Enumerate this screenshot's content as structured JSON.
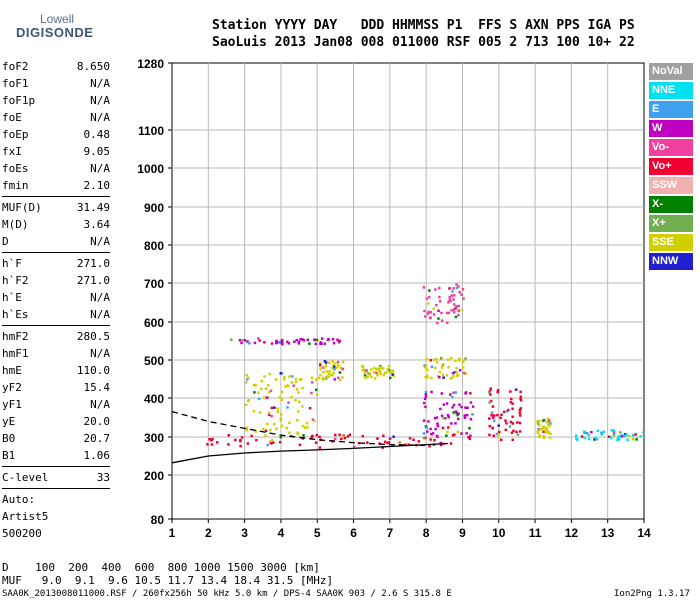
{
  "logo": {
    "line1": "Lowell",
    "line2": "DIGISONDE"
  },
  "header": {
    "row1": "Station YYYY DAY   DDD HHMMSS P1  FFS S AXN PPS IGA PS",
    "row2": "SaoLuis 2013 Jan08 008 011000 RSF 005 2 713 100 10+ 22"
  },
  "params": [
    {
      "label": "foF2",
      "value": "8.650"
    },
    {
      "label": "foF1",
      "value": "N/A"
    },
    {
      "label": "foF1p",
      "value": "N/A"
    },
    {
      "label": "foE",
      "value": "N/A"
    },
    {
      "label": "foEp",
      "value": "0.48"
    },
    {
      "label": "fxI",
      "value": "9.05"
    },
    {
      "label": "foEs",
      "value": "N/A"
    },
    {
      "label": "fmin",
      "value": "2.10"
    },
    {
      "label": "MUF(D)",
      "value": "31.49"
    },
    {
      "label": "M(D)",
      "value": "3.64"
    },
    {
      "label": "D",
      "value": "N/A"
    },
    {
      "label": "h`F",
      "value": "271.0"
    },
    {
      "label": "h`F2",
      "value": "271.0"
    },
    {
      "label": "h`E",
      "value": "N/A"
    },
    {
      "label": "h`Es",
      "value": "N/A"
    },
    {
      "label": "hmF2",
      "value": "280.5"
    },
    {
      "label": "hmF1",
      "value": "N/A"
    },
    {
      "label": "hmE",
      "value": "110.0"
    },
    {
      "label": "yF2",
      "value": "15.4"
    },
    {
      "label": "yF1",
      "value": "N/A"
    },
    {
      "label": "yE",
      "value": "20.0"
    },
    {
      "label": "B0",
      "value": "20.7"
    },
    {
      "label": "B1",
      "value": "1.06"
    }
  ],
  "clevel": {
    "label": "C-level",
    "value": "33"
  },
  "auto": {
    "line1": "Auto:",
    "line2": "Artist5",
    "line3": "500200"
  },
  "footer": {
    "d_row": "D    100  200  400  600  800 1000 1500 3000 [km]",
    "muf_row": "MUF   9.0  9.1  9.6 10.5 11.7 13.4 18.4 31.5 [MHz]",
    "file_line": "SAA0K_2013008011000.RSF / 260fx256h 50 kHz 5.0 km / DPS-4 SAA0K 903 / 2.6 S 315.8 E",
    "version": "Ion2Png 1.3.17"
  },
  "legend": [
    {
      "label": "NoVal",
      "color": "#a0a0a0"
    },
    {
      "label": "NNE",
      "color": "#00e0f0"
    },
    {
      "label": "E",
      "color": "#40a0f0"
    },
    {
      "label": "W",
      "color": "#c000c0"
    },
    {
      "label": "Vo-",
      "color": "#f040a0"
    },
    {
      "label": "Vo+",
      "color": "#f00030"
    },
    {
      "label": "SSW",
      "color": "#f0b0b0"
    },
    {
      "label": "X-",
      "color": "#008000"
    },
    {
      "label": "X+",
      "color": "#70b050"
    },
    {
      "label": "SSE",
      "color": "#d0d000"
    },
    {
      "label": "NNW",
      "color": "#2020d0"
    }
  ],
  "chart_data": {
    "type": "scatter",
    "title": "",
    "xlabel": "",
    "ylabel": "",
    "xlim": [
      1,
      14
    ],
    "ylim_labels": [
      "80",
      "200",
      "300",
      "400",
      "500",
      "600",
      "700",
      "800",
      "900",
      "1000",
      "1100",
      "1280"
    ],
    "x_ticks": [
      "1",
      "2",
      "3",
      "4",
      "5",
      "6",
      "7",
      "8",
      "9",
      "10",
      "11",
      "12",
      "13",
      "14"
    ],
    "y_ticks": [
      80,
      200,
      300,
      400,
      500,
      600,
      700,
      800,
      900,
      1000,
      1100,
      1280
    ],
    "grid": true,
    "legend_position": "right",
    "echo_clusters": [
      {
        "mode": "Vo+",
        "f_range": [
          1.9,
          9.2
        ],
        "h_range": [
          275,
          310
        ]
      },
      {
        "mode": "W",
        "f_range": [
          7.9,
          9.3
        ],
        "h_range": [
          300,
          420
        ]
      },
      {
        "mode": "SSE",
        "f_range": [
          3.0,
          5.0
        ],
        "h_range": [
          310,
          470
        ]
      },
      {
        "mode": "SSE",
        "f_range": [
          5.0,
          5.7
        ],
        "h_range": [
          450,
          500
        ]
      },
      {
        "mode": "SSE",
        "f_range": [
          6.2,
          7.1
        ],
        "h_range": [
          455,
          490
        ]
      },
      {
        "mode": "SSE",
        "f_range": [
          7.9,
          9.1
        ],
        "h_range": [
          455,
          510
        ]
      },
      {
        "mode": "W",
        "f_range": [
          2.5,
          5.6
        ],
        "h_range": [
          545,
          560
        ]
      },
      {
        "mode": "Vo-",
        "f_range": [
          7.9,
          9.0
        ],
        "h_range": [
          600,
          700
        ]
      },
      {
        "mode": "Vo+",
        "f_range": [
          9.7,
          10.6
        ],
        "h_range": [
          290,
          430
        ]
      },
      {
        "mode": "SSE",
        "f_range": [
          11.0,
          11.4
        ],
        "h_range": [
          300,
          350
        ]
      },
      {
        "mode": "NNE",
        "f_range": [
          12.1,
          14.0
        ],
        "h_range": [
          295,
          320
        ]
      }
    ],
    "trace_lines": [
      {
        "name": "",
        "style": "solid",
        "points": [
          [
            1,
            232
          ],
          [
            2,
            250
          ],
          [
            3,
            258
          ],
          [
            4,
            263
          ],
          [
            5,
            266
          ],
          [
            6,
            270
          ],
          [
            7,
            275
          ],
          [
            8,
            280
          ],
          [
            8.6,
            283
          ]
        ]
      },
      {
        "name": "",
        "style": "dashed",
        "points": [
          [
            1,
            365
          ],
          [
            2,
            340
          ],
          [
            3,
            322
          ],
          [
            4,
            305
          ],
          [
            5,
            293
          ],
          [
            6,
            285
          ],
          [
            7,
            280
          ],
          [
            8,
            278
          ]
        ]
      }
    ]
  }
}
